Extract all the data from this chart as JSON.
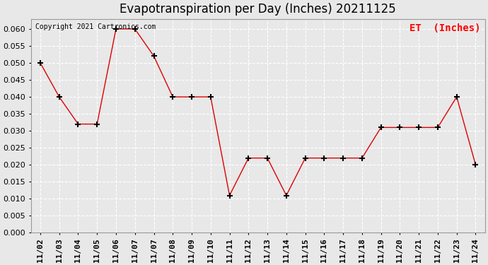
{
  "title": "Evapotranspiration per Day (Inches) 20211125",
  "copyright": "Copyright 2021 Cartronics.com",
  "legend_label": "ET  (Inches)",
  "dates": [
    "11/02",
    "11/03",
    "11/04",
    "11/05",
    "11/06",
    "11/07",
    "11/07",
    "11/08",
    "11/09",
    "11/10",
    "11/11",
    "11/12",
    "11/13",
    "11/14",
    "11/15",
    "11/16",
    "11/17",
    "11/18",
    "11/19",
    "11/20",
    "11/21",
    "11/22",
    "11/23",
    "11/24"
  ],
  "et_values": [
    0.05,
    0.04,
    0.032,
    0.032,
    0.06,
    0.06,
    0.052,
    0.04,
    0.04,
    0.04,
    0.011,
    0.022,
    0.022,
    0.011,
    0.022,
    0.022,
    0.022,
    0.022,
    0.031,
    0.031,
    0.031,
    0.031,
    0.04,
    0.02
  ],
  "line_color": "#dd0000",
  "marker_color": "#000000",
  "ylim_min": 0.0,
  "ylim_max": 0.063,
  "yticks": [
    0.0,
    0.005,
    0.01,
    0.015,
    0.02,
    0.025,
    0.03,
    0.035,
    0.04,
    0.045,
    0.05,
    0.055,
    0.06
  ],
  "background_color": "#e8e8e8",
  "grid_color": "#ffffff",
  "title_fontsize": 12,
  "tick_fontsize": 8,
  "copyright_fontsize": 7,
  "legend_fontsize": 10,
  "figwidth": 6.9,
  "figheight": 3.75,
  "dpi": 100
}
